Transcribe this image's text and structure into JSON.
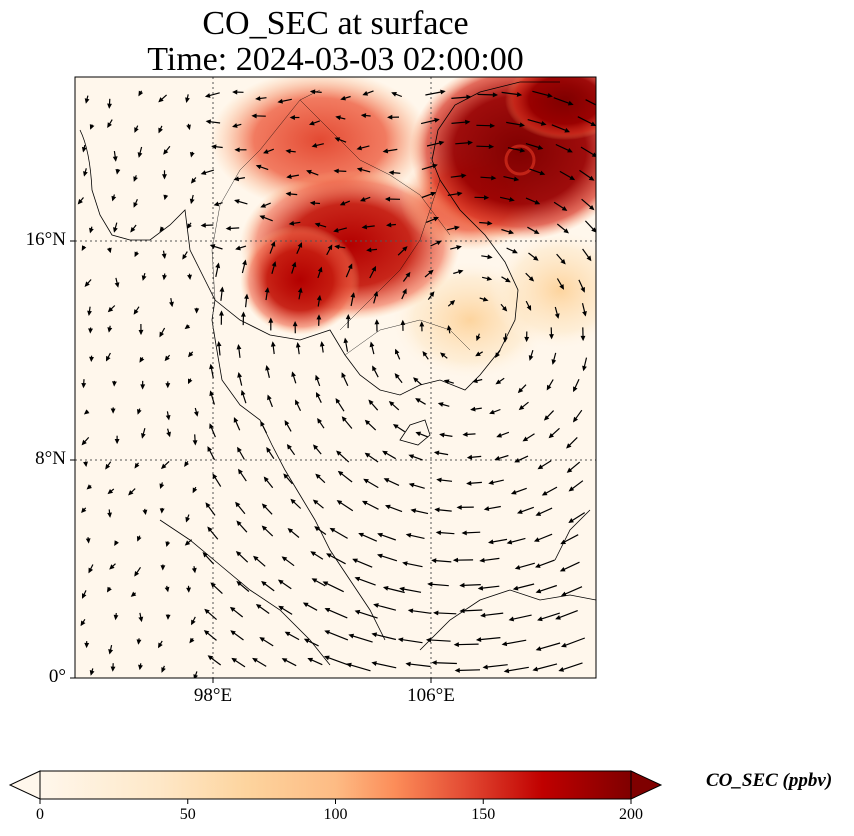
{
  "title": "CO_SEC at surface",
  "subtitle": "Time: 2024-03-03 02:00:00",
  "map": {
    "lon_range": [
      93,
      112
    ],
    "lat_range": [
      0,
      22
    ],
    "lat_ticks": [
      {
        "value": 16,
        "label": "16°N"
      },
      {
        "value": 8,
        "label": "8°N"
      },
      {
        "value": 0,
        "label": "0°"
      }
    ],
    "lon_ticks": [
      {
        "value": 98,
        "label": "98°E"
      },
      {
        "value": 106,
        "label": "106°E"
      }
    ],
    "gridlines": true,
    "gridline_style": "dotted",
    "colormap": "OrRd",
    "vectors": "wind-arrows"
  },
  "colorbar": {
    "label": "CO_SEC (ppbv)",
    "min": 0,
    "max": 200,
    "ticks": [
      "0",
      "50",
      "100",
      "150",
      "200"
    ],
    "extend": "both",
    "colors": [
      "#fff7ec",
      "#fdd49e",
      "#fc8d59",
      "#d7301f",
      "#b30000",
      "#7f0000"
    ]
  }
}
